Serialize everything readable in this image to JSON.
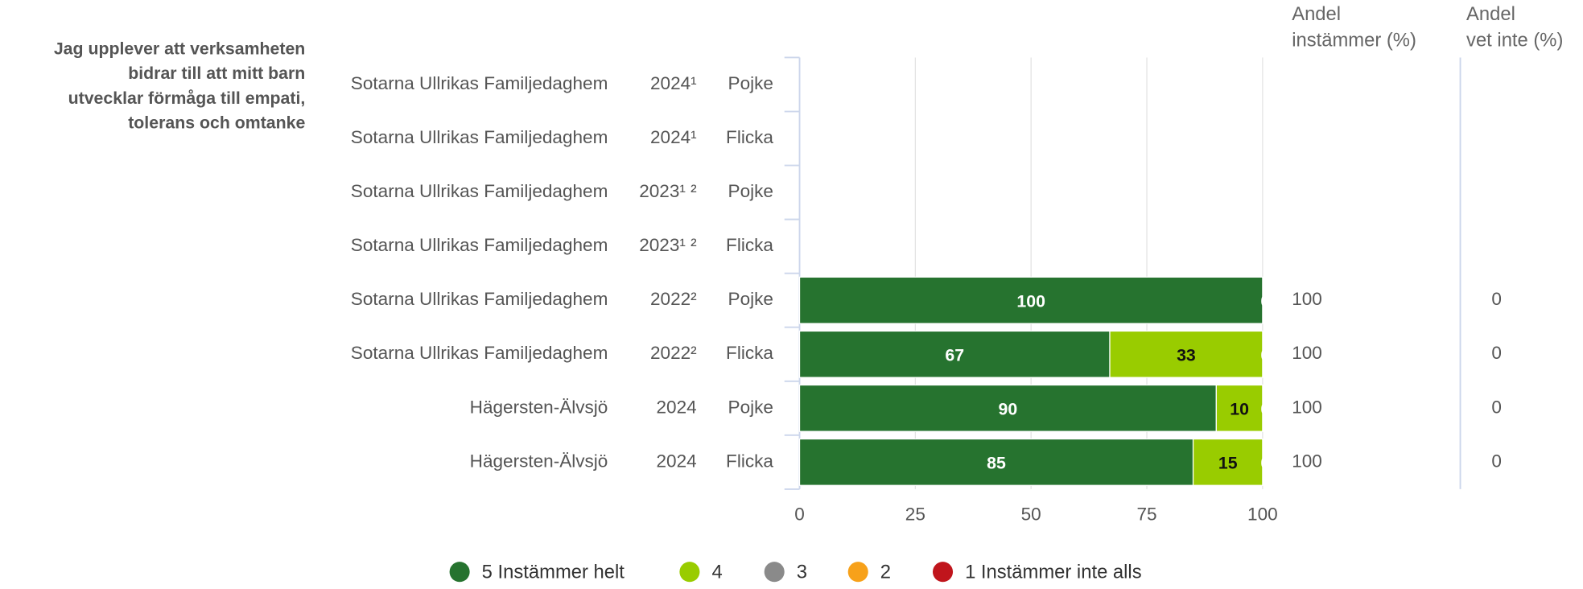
{
  "chart_data": {
    "type": "bar",
    "orientation": "horizontal",
    "stacked": true,
    "question": "Jag upplever att verksamheten bidrar till att mitt barn utvecklar förmåga till empati, tolerans och omtanke",
    "categories": [
      [
        "Sotarna Ullrikas Familjedaghem",
        "2024¹",
        "Pojke"
      ],
      [
        "Sotarna Ullrikas Familjedaghem",
        "2024¹",
        "Flicka"
      ],
      [
        "Sotarna Ullrikas Familjedaghem",
        "2023¹ ²",
        "Pojke"
      ],
      [
        "Sotarna Ullrikas Familjedaghem",
        "2023¹ ²",
        "Flicka"
      ],
      [
        "Sotarna Ullrikas Familjedaghem",
        "2022²",
        "Pojke"
      ],
      [
        "Sotarna Ullrikas Familjedaghem",
        "2022²",
        "Flicka"
      ],
      [
        "Hägersten-Älvsjö",
        "2024",
        "Pojke"
      ],
      [
        "Hägersten-Älvsjö",
        "2024",
        "Flicka"
      ]
    ],
    "series": [
      {
        "name": "5 Instämmer helt",
        "color": "#26732f",
        "label_color": "#ffffff",
        "values": [
          null,
          null,
          null,
          null,
          100,
          67,
          90,
          85
        ]
      },
      {
        "name": "4",
        "color": "#99cc00",
        "label_color": "#111111",
        "values": [
          null,
          null,
          null,
          null,
          null,
          33,
          10,
          15
        ]
      },
      {
        "name": "3",
        "color": "#8a8a8a",
        "label_color": "#ffffff",
        "values": [
          null,
          null,
          null,
          null,
          0,
          0,
          0,
          0
        ]
      },
      {
        "name": "2",
        "color": "#f7a11a",
        "label_color": "#111111",
        "values": [
          null,
          null,
          null,
          null,
          null,
          null,
          null,
          null
        ]
      },
      {
        "name": "1 Instämmer inte alls",
        "color": "#c0151c",
        "label_color": "#ffffff",
        "values": [
          null,
          null,
          null,
          null,
          null,
          null,
          null,
          null
        ]
      }
    ],
    "xlim": [
      0,
      100
    ],
    "xticks": [
      0,
      25,
      50,
      75,
      100
    ],
    "grid": true,
    "legend": "bottom",
    "columns": [
      {
        "title": [
          "Andel",
          "instämmer (%)"
        ],
        "values": [
          null,
          null,
          null,
          null,
          100,
          100,
          100,
          100
        ]
      },
      {
        "title": [
          "Andel",
          "vet inte (%)"
        ],
        "values": [
          null,
          null,
          null,
          null,
          0,
          0,
          0,
          0
        ]
      }
    ]
  }
}
